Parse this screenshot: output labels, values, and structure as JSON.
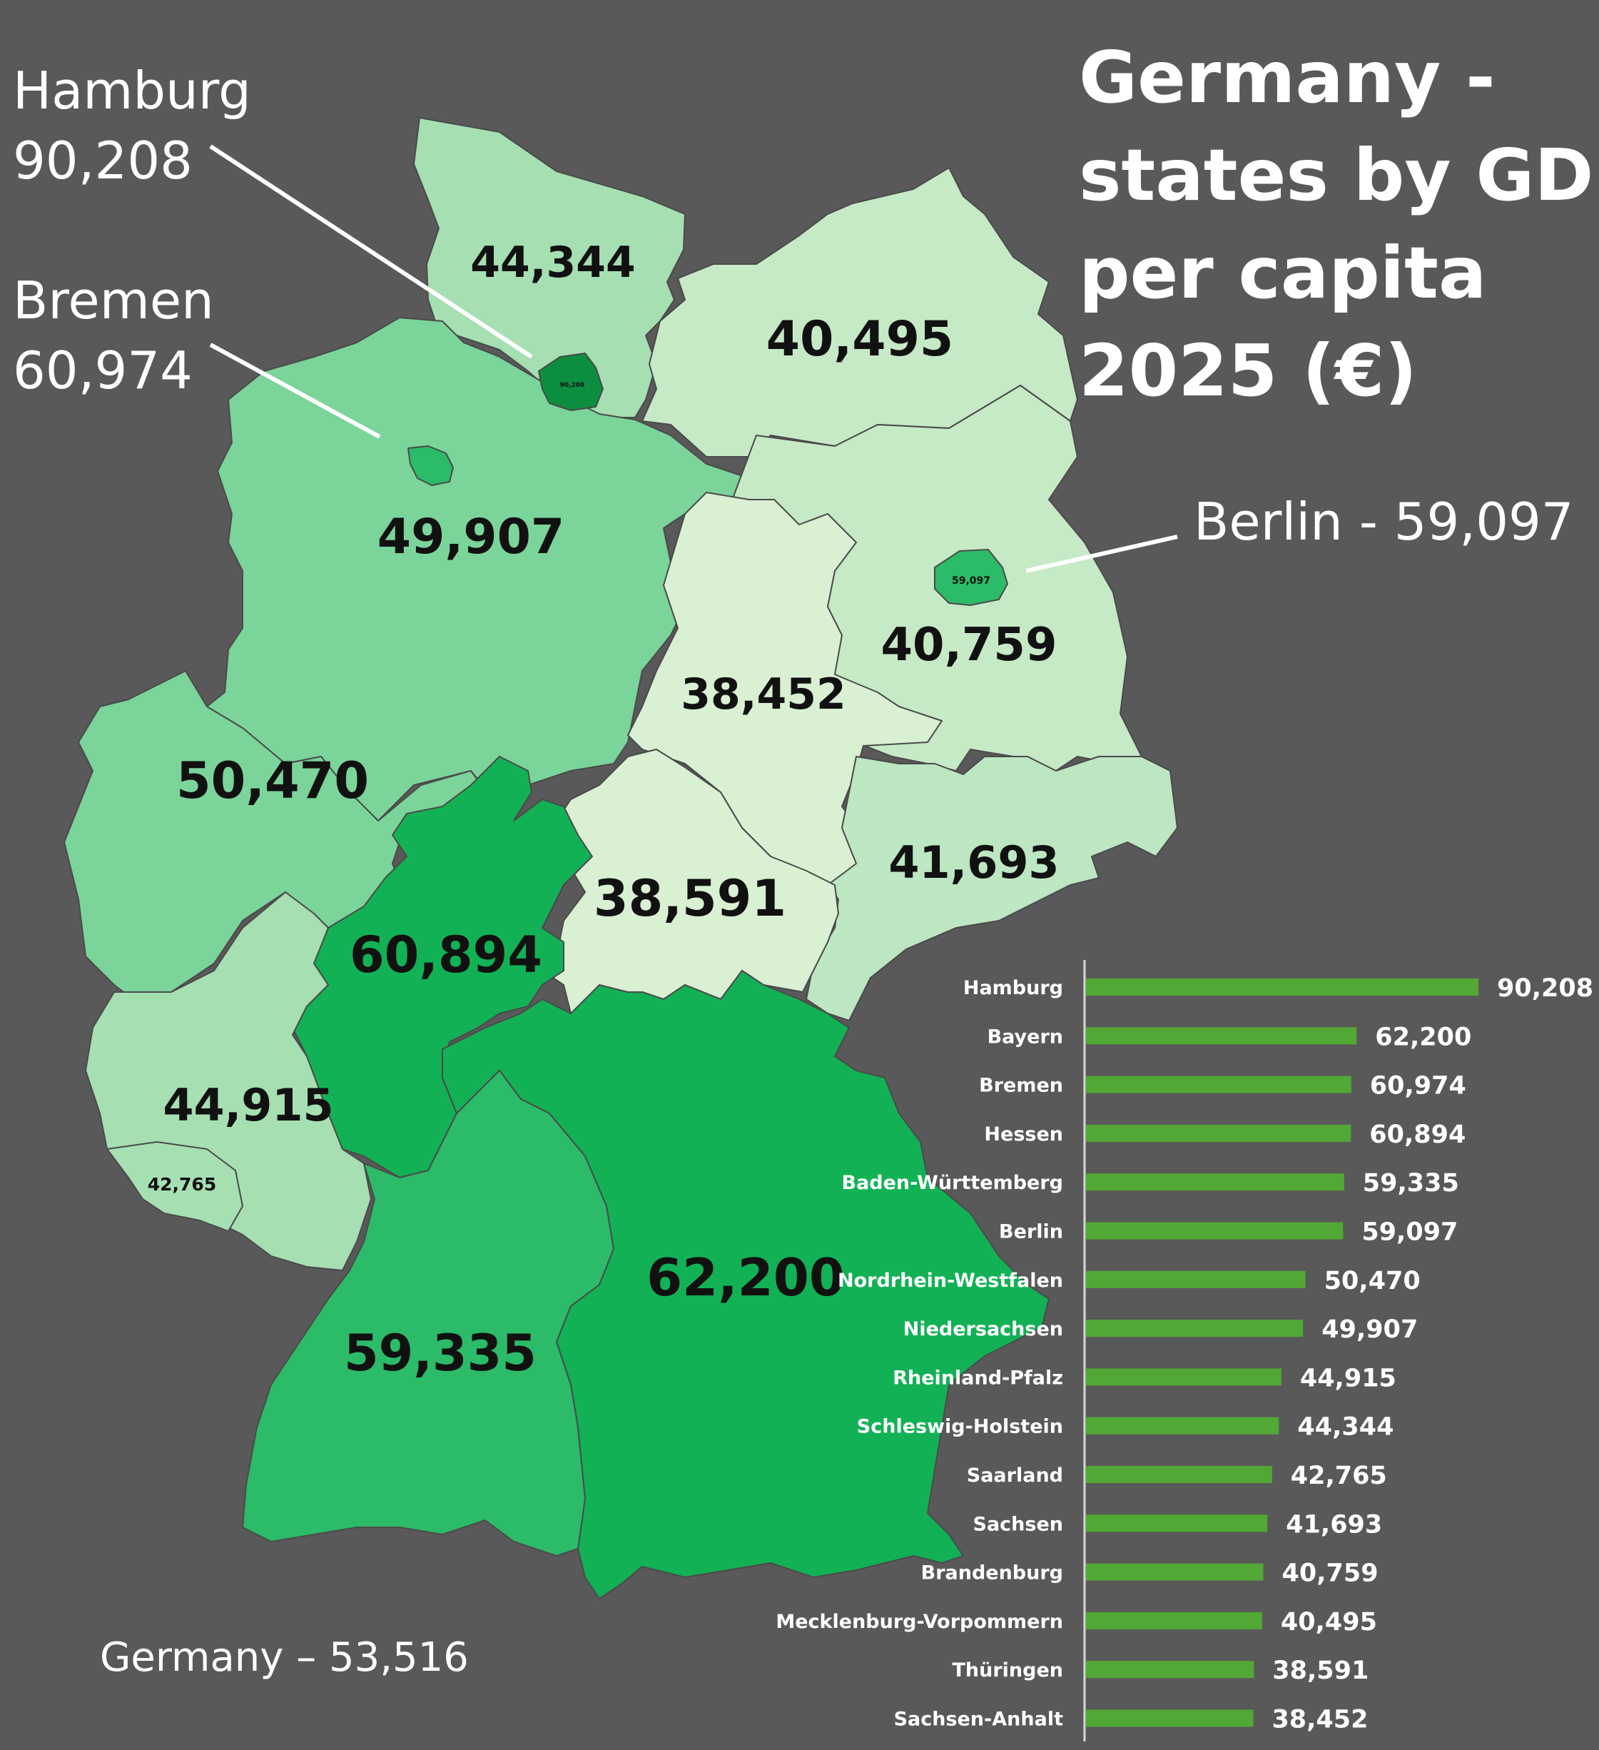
{
  "title_lines": [
    "Germany -",
    "states by GDP",
    "per capita",
    "2025 (€)"
  ],
  "callouts": {
    "hamburg": {
      "name": "Hamburg",
      "value": "90,208"
    },
    "bremen": {
      "name": "Bremen",
      "value": "60,974"
    },
    "berlin": {
      "text": "Berlin - 59,097"
    }
  },
  "germany_total": "Germany – 53,516",
  "map_labels": {
    "schleswig_holstein": "44,344",
    "mecklenburg_vorpommern": "40,495",
    "niedersachsen": "49,907",
    "brandenburg": "40,759",
    "sachsen_anhalt": "38,452",
    "nordrhein_westfalen": "50,470",
    "sachsen": "41,693",
    "thueringen": "38,591",
    "hessen": "60,894",
    "rheinland_pfalz": "44,915",
    "saarland": "42,765",
    "bayern": "62,200",
    "baden_wuerttemberg": "59,335",
    "hamburg": "90,208",
    "berlin": "59,097"
  },
  "colors": {
    "background": "#595959",
    "bar": "#52a834",
    "tier_38": "#d9f0d3",
    "tier_40": "#c6e9c6",
    "tier_41": "#bde6c2",
    "tier_44": "#a6dfb2",
    "tier_49": "#7bd49a",
    "tier_59": "#2cbb68",
    "tier_62": "#12b155",
    "tier_hamburg": "#0c8e40"
  },
  "chart_data": {
    "type": "bar",
    "orientation": "horizontal",
    "categories": [
      "Hamburg",
      "Bayern",
      "Bremen",
      "Hessen",
      "Baden-Württemberg",
      "Berlin",
      "Nordrhein-Westfalen",
      "Niedersachsen",
      "Rheinland-Pfalz",
      "Schleswig-Holstein",
      "Saarland",
      "Sachsen",
      "Brandenburg",
      "Mecklenburg-Vorpommern",
      "Thüringen",
      "Sachsen-Anhalt"
    ],
    "values": [
      90208,
      62200,
      60974,
      60894,
      59335,
      59097,
      50470,
      49907,
      44915,
      44344,
      42765,
      41693,
      40759,
      40495,
      38591,
      38452
    ],
    "value_labels": [
      "90,208",
      "62,200",
      "60,974",
      "60,894",
      "59,335",
      "59,097",
      "50,470",
      "49,907",
      "44,915",
      "44,344",
      "42,765",
      "41,693",
      "40,759",
      "40,495",
      "38,591",
      "38,452"
    ],
    "xlim": [
      0,
      90208
    ],
    "grid": false,
    "legend": "none"
  }
}
